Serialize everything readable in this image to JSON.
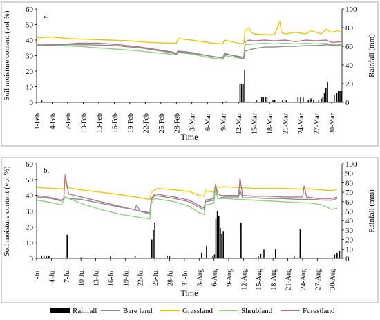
{
  "legend": {
    "items": [
      {
        "label": "Rainfall",
        "color": "#000000",
        "kind": "bar"
      },
      {
        "label": "Bare land",
        "color": "#8c8c8c",
        "kind": "line"
      },
      {
        "label": "Grassland",
        "color": "#f2c500",
        "kind": "line"
      },
      {
        "label": "Shrubland",
        "color": "#8fd17c",
        "kind": "line"
      },
      {
        "label": "Forestland",
        "color": "#b5748a",
        "kind": "line"
      }
    ]
  },
  "chart_data": [
    {
      "type": "line",
      "panel_label": "a.",
      "xlabel": "Time",
      "ylabel": "Soil moisture content (vol %)",
      "y2label": "Rainfall (mm)",
      "ylim": [
        0,
        60
      ],
      "y2lim": [
        0,
        100
      ],
      "yticks": [
        0,
        10,
        20,
        30,
        40,
        50,
        60
      ],
      "y2ticks": [
        0,
        20,
        40,
        60,
        80,
        100
      ],
      "n_days": 59,
      "x_tick_labels": [
        "1-Feb",
        "4-Feb",
        "7-Feb",
        "10-Feb",
        "13-Feb",
        "16-Feb",
        "19-Feb",
        "22-Feb",
        "25-Feb",
        "28-Feb",
        "3-Mar",
        "6-Mar",
        "9-Mar",
        "12-Mar",
        "15-Mar",
        "18-Mar",
        "21-Mar",
        "24-Mar",
        "27-Mar",
        "30-Mar"
      ],
      "x_tick_days": [
        0,
        3,
        6,
        9,
        12,
        15,
        18,
        21,
        24,
        27,
        30,
        33,
        36,
        39,
        42,
        45,
        48,
        51,
        54,
        57
      ],
      "series": [
        {
          "name": "Grassland",
          "color": "#f2c500",
          "x": [
            0,
            3,
            6,
            10,
            14,
            18,
            22,
            26,
            27,
            27.3,
            30,
            34,
            36,
            36.3,
            39,
            40,
            40.3,
            41,
            41.5,
            42,
            44,
            46,
            47,
            47.3,
            48,
            50,
            52,
            53,
            55,
            56,
            57,
            58,
            59
          ],
          "y": [
            41.5,
            42,
            41,
            40.5,
            40,
            39.5,
            38.5,
            38,
            38,
            41,
            40,
            38,
            37.5,
            40,
            38,
            37.5,
            46,
            48,
            45,
            44,
            43.5,
            43.5,
            52,
            45,
            44,
            45,
            44,
            46,
            44,
            47,
            45,
            46,
            45
          ]
        },
        {
          "name": "Forestland",
          "color": "#b5748a",
          "x": [
            0,
            4,
            8,
            12,
            16,
            20,
            24,
            26,
            27,
            27.3,
            30,
            33,
            35,
            36,
            36.3,
            39,
            40,
            40.3,
            41,
            42,
            44,
            46,
            48,
            50,
            52,
            54,
            56,
            57,
            59
          ],
          "y": [
            37.5,
            37,
            38,
            38,
            37,
            35.5,
            33.5,
            32.5,
            31.5,
            33,
            32,
            30,
            29,
            28.5,
            31,
            29.5,
            29,
            39,
            40,
            39.5,
            40,
            39.5,
            40,
            39,
            40,
            39.5,
            40,
            38.5,
            39
          ]
        },
        {
          "name": "Shrubland",
          "color": "#8fd17c",
          "x": [
            0,
            4,
            8,
            12,
            16,
            20,
            24,
            26,
            27,
            27.3,
            30,
            33,
            35,
            36,
            36.3,
            39,
            40,
            40.3,
            42,
            44,
            46,
            48,
            50,
            52,
            54,
            56,
            57,
            59
          ],
          "y": [
            37,
            36.5,
            36,
            35,
            34,
            33,
            31.5,
            31,
            30.5,
            32,
            31,
            29,
            28,
            27.5,
            30,
            28.5,
            28,
            37,
            37.5,
            38,
            37.5,
            38,
            37.5,
            38,
            37.5,
            38,
            37,
            37.5
          ]
        },
        {
          "name": "Bare land",
          "color": "#8c8c8c",
          "x": [
            0,
            5,
            10,
            15,
            20,
            24,
            26,
            27,
            27.3,
            30,
            33,
            35,
            36,
            36.3,
            39,
            40,
            40.3,
            42,
            44,
            46,
            48,
            50,
            52,
            54,
            56,
            58,
            59
          ],
          "y": [
            36.5,
            37,
            37,
            36.5,
            35,
            33,
            32,
            31,
            32.5,
            31.5,
            30,
            29,
            28.5,
            31.5,
            29,
            28,
            33,
            34.5,
            35.5,
            35.5,
            36,
            36,
            36.5,
            36.5,
            37,
            36.5,
            37
          ]
        }
      ],
      "rainfall": {
        "x": [
          1,
          36.6,
          39.3,
          39.6,
          39.9,
          40.2,
          42.5,
          43.5,
          43.8,
          44.2,
          44.5,
          45.5,
          45.8,
          46,
          47.5,
          48,
          48.3,
          50.5,
          51,
          51.5,
          52.5,
          53,
          53.5,
          54.5,
          55,
          55.3,
          55.6,
          55.9,
          56.2,
          57.5,
          58,
          58.3,
          58.6,
          58.9
        ],
        "y": [
          2,
          1,
          20,
          20,
          20,
          35,
          2,
          6,
          6,
          6,
          6,
          3,
          3,
          3,
          2,
          3,
          2,
          5,
          5,
          6,
          3,
          4,
          2,
          2,
          4,
          6,
          10,
          15,
          22,
          8,
          10,
          12,
          12,
          12
        ]
      }
    },
    {
      "type": "line",
      "panel_label": "b.",
      "xlabel": "Time",
      "ylabel": "Soil moisture content (vol %)",
      "y2label": "Rainfall (mm)",
      "ylim": [
        0,
        60
      ],
      "y2lim": [
        0,
        100
      ],
      "yticks": [
        0,
        10,
        20,
        30,
        40,
        50,
        60
      ],
      "y2ticks": [
        0,
        10,
        20,
        30,
        40,
        50,
        60,
        70,
        80,
        90,
        100
      ],
      "n_days": 62,
      "x_tick_labels": [
        "1-Jul",
        "4-Jul",
        "7-Jul",
        "10-Jul",
        "13-Jul",
        "16-Jul",
        "19-Jul",
        "22-Jul",
        "25-Jul",
        "28-Jul",
        "31-Jul",
        "3-Aug",
        "6-Aug",
        "9-Aug",
        "12-Aug",
        "15-Aug",
        "18-Aug",
        "21-Aug",
        "24-Aug",
        "27-Aug",
        "30-Aug"
      ],
      "x_tick_days": [
        0,
        3,
        6,
        9,
        12,
        15,
        18,
        21,
        24,
        27,
        30,
        33,
        36,
        39,
        42,
        45,
        48,
        51,
        54,
        57,
        60
      ],
      "series": [
        {
          "name": "Grassland",
          "color": "#f2c500",
          "x": [
            0,
            3,
            5.5,
            5.8,
            6.2,
            9,
            13,
            17,
            21,
            23,
            23.3,
            24.5,
            28,
            31,
            33,
            34,
            34.3,
            36,
            36.3,
            37,
            38,
            41,
            44,
            47,
            50,
            53,
            56,
            58,
            60,
            61
          ],
          "y": [
            45,
            44.5,
            44,
            50,
            45,
            43.5,
            42,
            40.5,
            38.5,
            37.5,
            42,
            44.5,
            43.5,
            42.5,
            40,
            39.5,
            43,
            42,
            46,
            45,
            45.5,
            45,
            44.5,
            44.5,
            44.5,
            44,
            44,
            43.5,
            43,
            44
          ]
        },
        {
          "name": "Forestland",
          "color": "#b5748a",
          "x": [
            0,
            3,
            5,
            5.5,
            5.8,
            6.5,
            9,
            13,
            17,
            21,
            23,
            23.3,
            24,
            28,
            31,
            33,
            34,
            34.3,
            36,
            36.3,
            36.8,
            37.5,
            39,
            41,
            41.3,
            41.8,
            44,
            47,
            50,
            53,
            54,
            54.3,
            54.8,
            57,
            60,
            61
          ],
          "y": [
            40,
            38.5,
            37,
            37.5,
            53,
            41,
            39,
            36,
            33,
            30,
            29,
            38,
            41,
            39,
            37,
            33.5,
            32,
            37,
            38,
            47,
            41,
            40,
            40,
            40,
            51,
            40,
            39.5,
            39.5,
            39,
            39,
            39,
            46,
            39,
            38,
            38,
            39
          ]
        },
        {
          "name": "Bare land",
          "color": "#8c8c8c",
          "x": [
            0,
            3,
            5,
            5.8,
            6.5,
            9,
            13,
            17,
            20,
            20.3,
            21,
            23,
            23.3,
            24,
            28,
            31,
            33,
            34,
            34.3,
            36,
            36.3,
            36.8,
            38,
            41,
            41.3,
            41.8,
            44,
            47,
            50,
            53,
            56,
            58,
            60,
            61
          ],
          "y": [
            39,
            38,
            36.5,
            39,
            38,
            37.5,
            35,
            32.5,
            31,
            34,
            30,
            28,
            37,
            40,
            38,
            36,
            32.5,
            31,
            36,
            37,
            45,
            38,
            39,
            39,
            43,
            38.5,
            38.5,
            38,
            38,
            37.5,
            37.5,
            37,
            37,
            38
          ]
        },
        {
          "name": "Shrubland",
          "color": "#8fd17c",
          "x": [
            0,
            3,
            5,
            5.8,
            6.5,
            9,
            13,
            17,
            21,
            23,
            23.3,
            24,
            28,
            31,
            33,
            34,
            34.3,
            36,
            36.3,
            36.8,
            38,
            41,
            44,
            47,
            50,
            53,
            56,
            58,
            60,
            61
          ],
          "y": [
            37,
            35.5,
            34,
            39,
            38,
            35,
            31,
            28,
            26,
            25,
            35,
            38,
            36,
            33,
            29,
            28,
            34,
            35,
            44,
            38,
            38,
            37.5,
            37,
            36.5,
            36,
            35.5,
            35,
            34,
            31,
            32
          ]
        }
      ],
      "rainfall": {
        "x": [
          1,
          1.5,
          2,
          2.5,
          6.2,
          9,
          15,
          20,
          23.4,
          23.7,
          24,
          26.5,
          27,
          33.5,
          34.5,
          35.8,
          36.1,
          36.4,
          36.7,
          37,
          37.3,
          37.6,
          37.9,
          41.5,
          45,
          45.5,
          46,
          46.3,
          48.5,
          52.3,
          53.5,
          60.5,
          61,
          61.5
        ],
        "y": [
          3,
          3,
          2,
          3,
          25,
          1,
          2,
          3,
          20,
          30,
          38,
          3,
          2,
          6,
          13,
          3,
          4,
          42,
          50,
          45,
          32,
          26,
          29,
          38,
          3,
          5,
          10,
          10,
          10,
          2,
          31,
          4,
          6,
          8
        ]
      }
    }
  ]
}
